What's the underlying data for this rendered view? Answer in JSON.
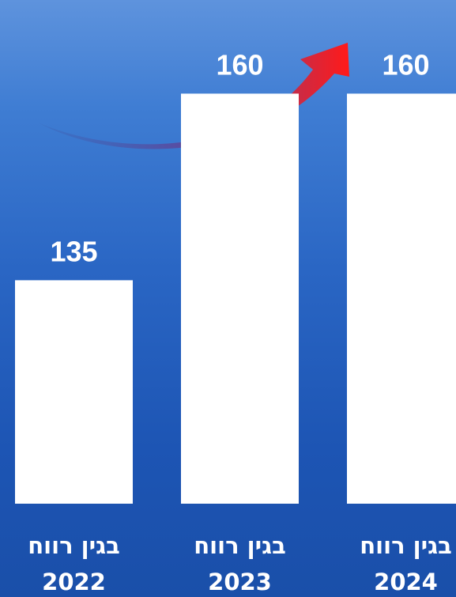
{
  "chart_data": {
    "type": "bar",
    "categories": [
      "בגין רווח 2022",
      "בגין רווח 2023",
      "בגין רווח 2024"
    ],
    "category_lines": [
      [
        "בגין רווח",
        "2022"
      ],
      [
        "בגין רווח",
        "2023"
      ],
      [
        "בגין רווח",
        "2024"
      ]
    ],
    "values": [
      135,
      160,
      160
    ],
    "data_labels": [
      "135",
      "160",
      "160"
    ],
    "title": "",
    "xlabel": "",
    "ylabel": "",
    "ylim": [
      120,
      160
    ],
    "grid": false,
    "legend": "none",
    "annotation": "upward-trend-arrow"
  },
  "colors": {
    "background_top": "#5e93dd",
    "background_bottom": "#1a4fa9",
    "bar": "#ffffff",
    "text": "#ffffff",
    "arrow_start": "#3a5fb0",
    "arrow_end": "#ff1a1a"
  }
}
